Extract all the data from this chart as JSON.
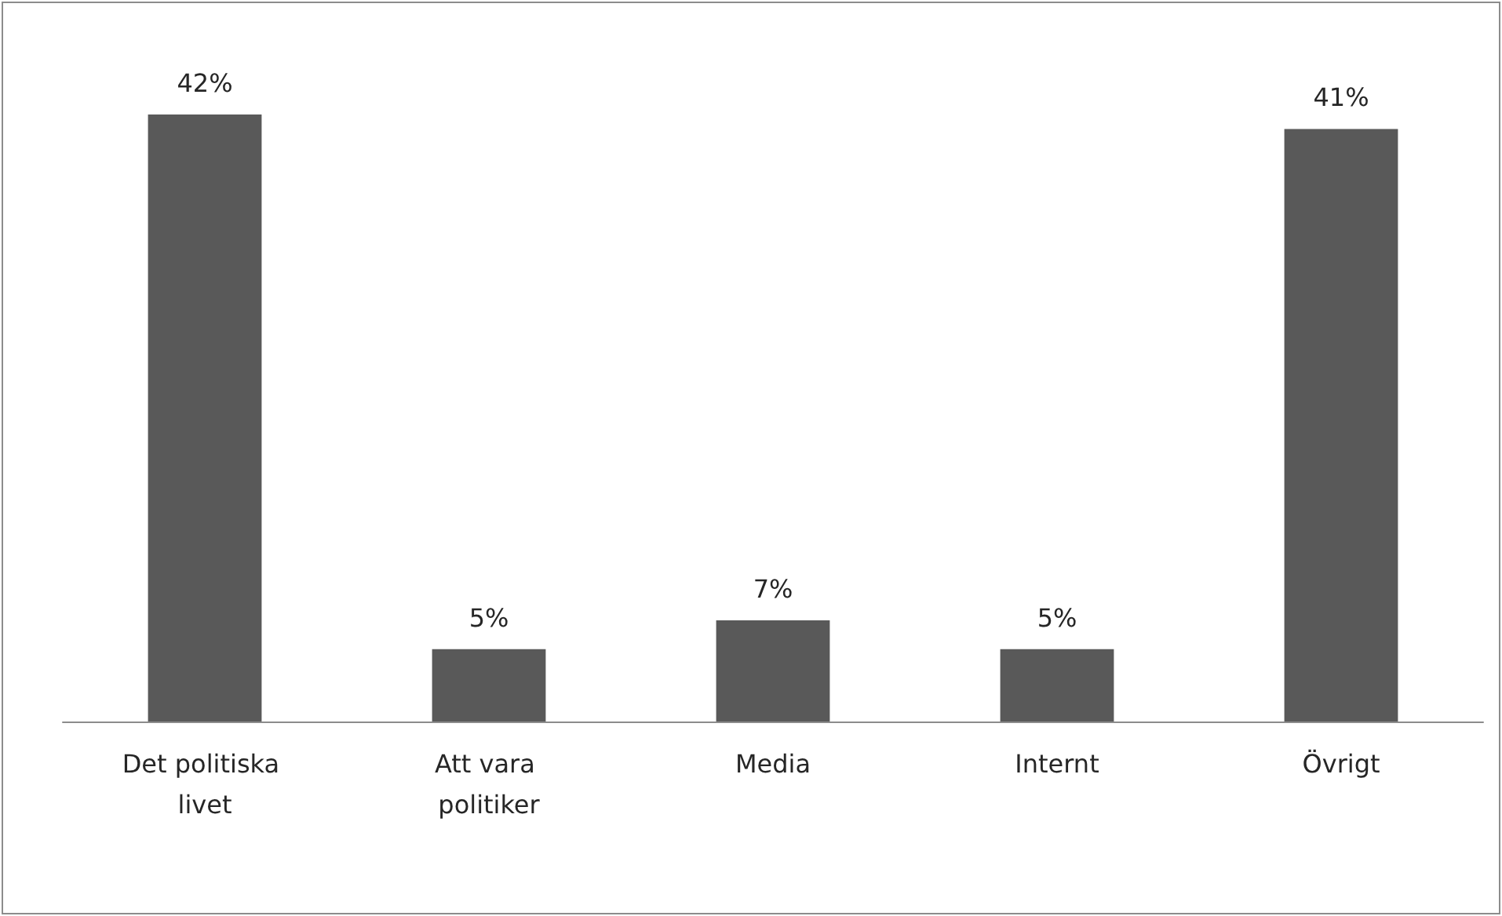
{
  "chart_data": {
    "type": "bar",
    "categories": [
      "Det politiska livet",
      "Att vara politiker",
      "Media",
      "Internt",
      "Övrigt"
    ],
    "values": [
      42,
      5,
      7,
      5,
      41
    ],
    "value_labels": [
      "42%",
      "5%",
      "7%",
      "5%",
      "41%"
    ],
    "color": "#595959"
  }
}
